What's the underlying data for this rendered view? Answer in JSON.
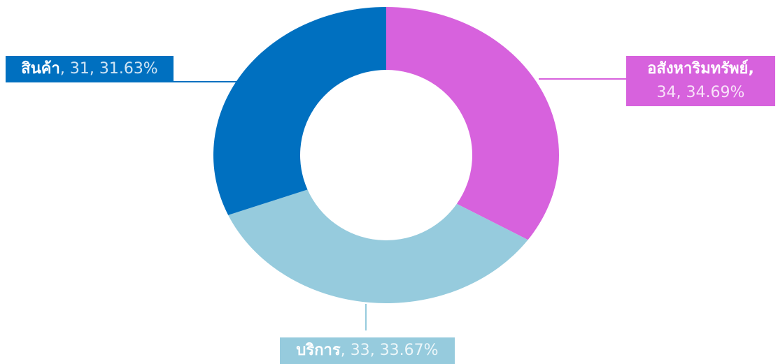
{
  "chart_data": {
    "type": "donut",
    "categories": [
      "อสังหาริมทรัพย์",
      "บริการ",
      "สินค้า"
    ],
    "values": [
      34,
      33,
      31
    ],
    "percentages": [
      34.69,
      33.67,
      31.63
    ],
    "percentage_labels": [
      "34.69%",
      "33.67%",
      "31.63%"
    ],
    "colors": [
      "#d762dd",
      "#96cbdd",
      "#0070c0"
    ]
  }
}
